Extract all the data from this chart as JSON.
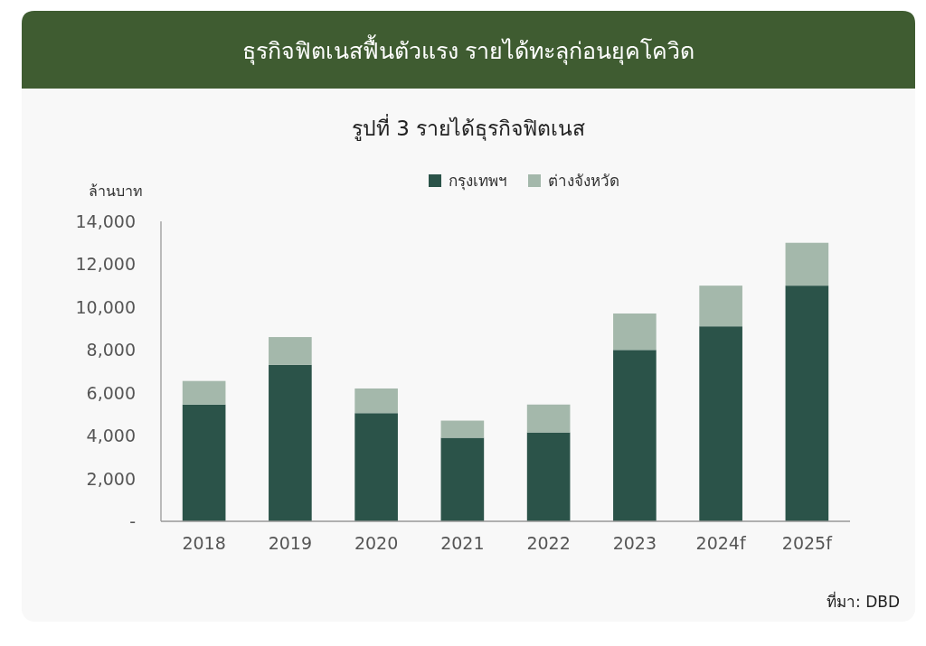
{
  "chart_data": {
    "type": "bar",
    "title": "ธุรกิจฟิตเนสฟื้นตัวแรง รายได้ทะลุก่อนยุคโควิด",
    "subtitle": "รูปที่ 3 รายได้ธุรกิจฟิตเนส",
    "ylabel": "ล้านบาท",
    "categories": [
      "2018",
      "2019",
      "2020",
      "2021",
      "2022",
      "2023",
      "2024f",
      "2025f"
    ],
    "series": [
      {
        "name": "กรุงเทพฯ",
        "color": "#2b5349",
        "values": [
          5450,
          7300,
          5050,
          3900,
          4150,
          8000,
          9100,
          11000
        ]
      },
      {
        "name": "ต่างจังหวัด",
        "color": "#a4b8ab",
        "values": [
          1100,
          1300,
          1150,
          800,
          1300,
          1700,
          1900,
          2000
        ]
      }
    ],
    "stacked": true,
    "ylim": [
      0,
      14000
    ],
    "yticks": [
      {
        "value": 0,
        "label": "-"
      },
      {
        "value": 2000,
        "label": "2,000"
      },
      {
        "value": 4000,
        "label": "4,000"
      },
      {
        "value": 6000,
        "label": "6,000"
      },
      {
        "value": 8000,
        "label": "8,000"
      },
      {
        "value": 10000,
        "label": "10,000"
      },
      {
        "value": 12000,
        "label": "12,000"
      },
      {
        "value": 14000,
        "label": "14,000"
      }
    ],
    "legend": "top",
    "annotations": [
      "ที่มา: DBD"
    ]
  }
}
